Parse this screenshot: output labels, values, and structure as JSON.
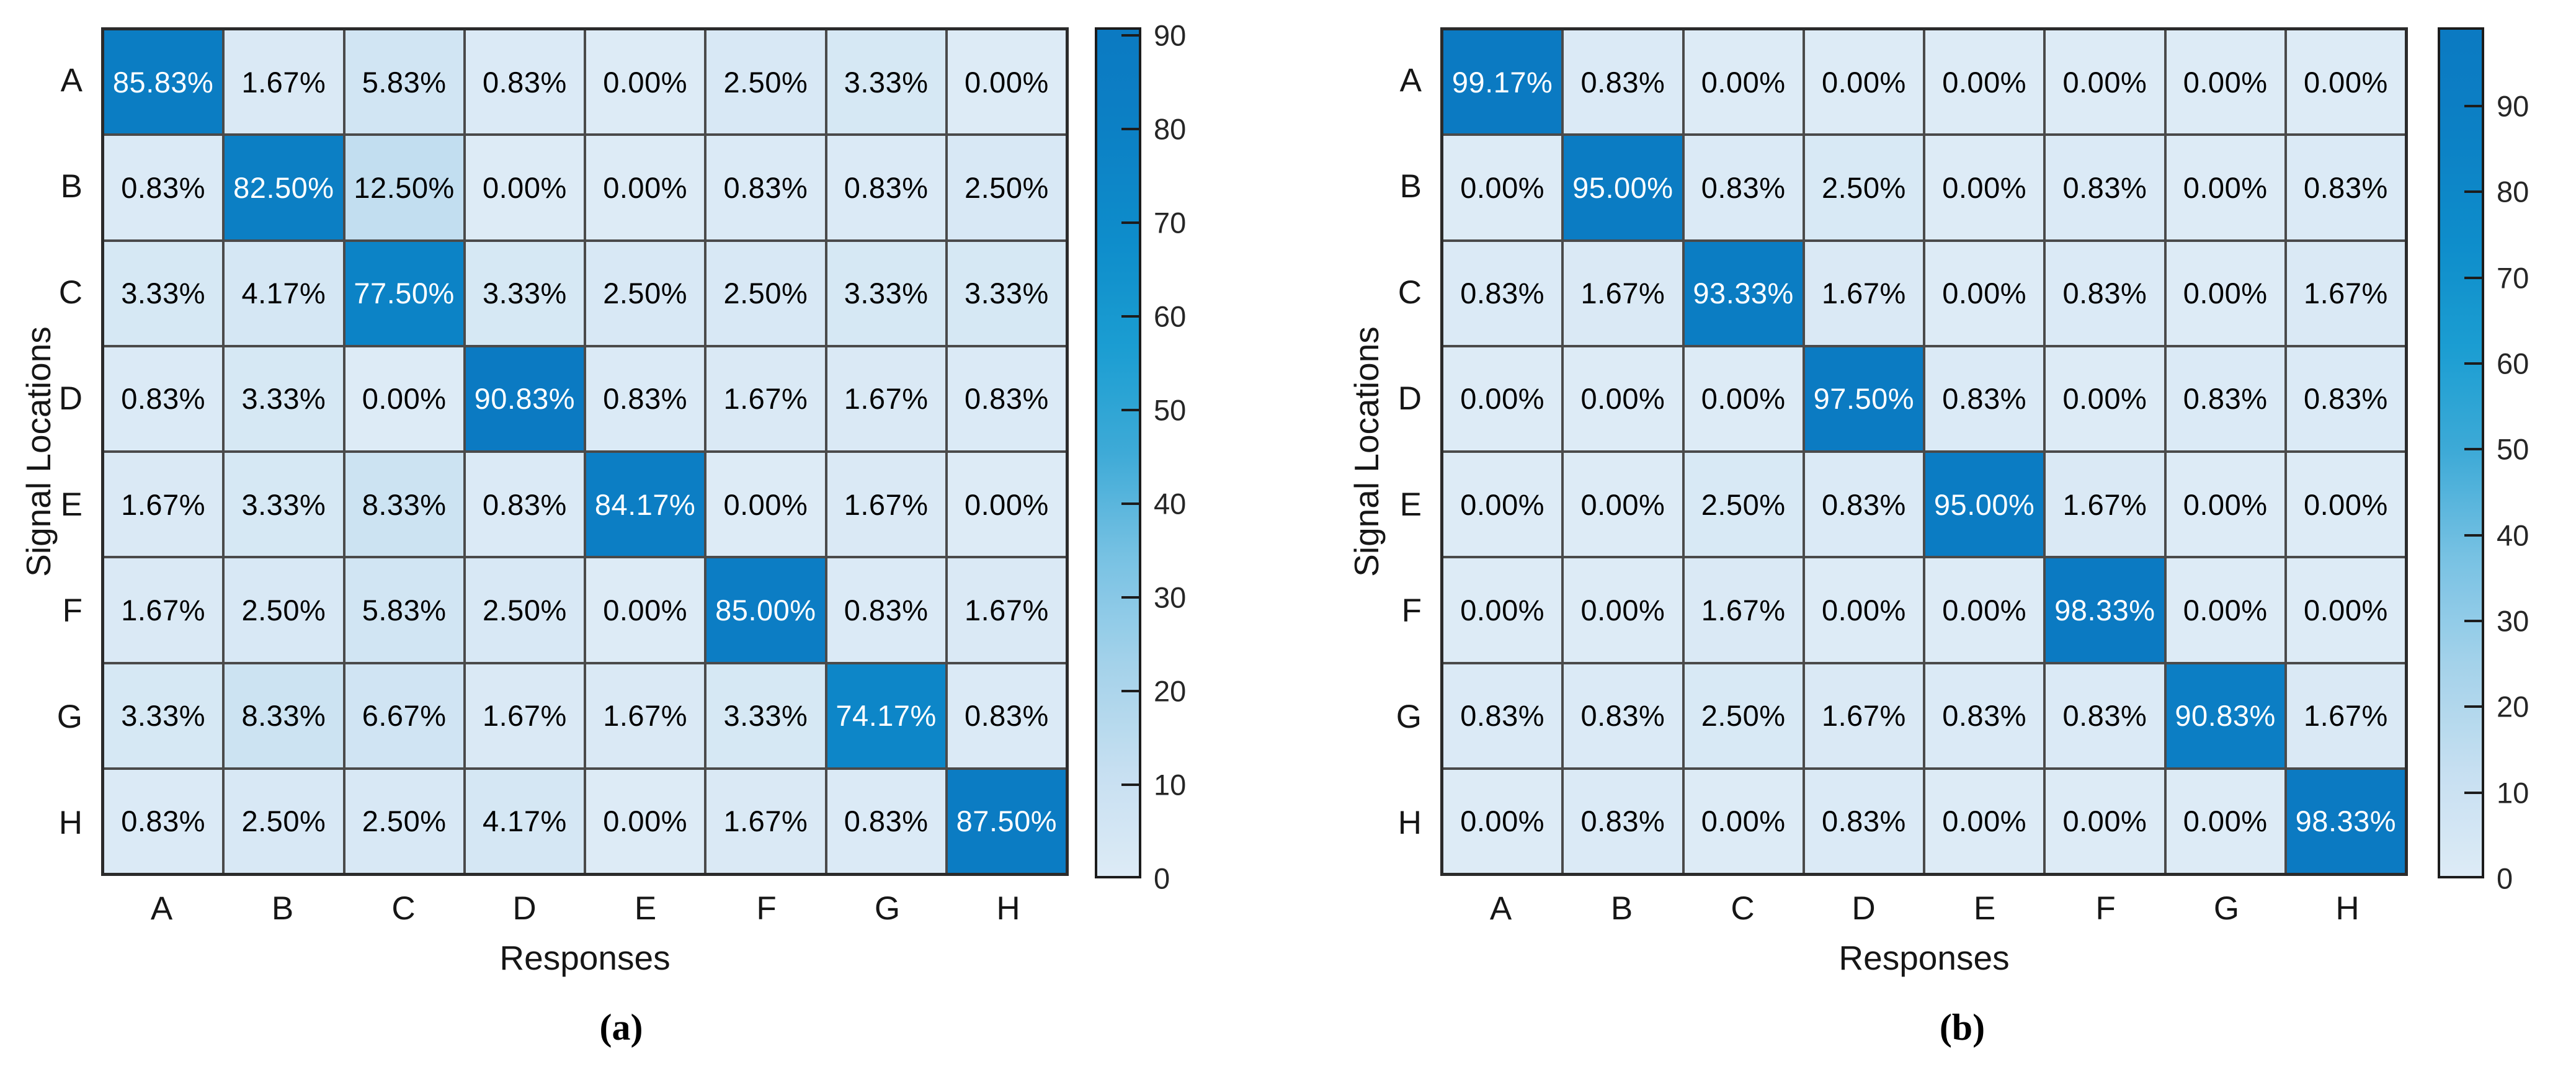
{
  "figure": {
    "xlabel": "Responses",
    "ylabel": "Signal Locations",
    "caption_a": "(a)",
    "caption_b": "(b)"
  },
  "colors": {
    "background": "#ffffff",
    "grid_line": "#4a4a4a",
    "outer_border": "#2b2b2b",
    "cell_text_dark": "#000000",
    "cell_text_light": "#ffffff",
    "axis_text": "#161616",
    "colorbar_border": "#1c1c1c",
    "cmap_low": "#dceaf5",
    "cmap_mid": "#3eaad7",
    "cmap_high": "#0b7ac2",
    "colormap_stops": [
      [
        0.0,
        "#ddebf6"
      ],
      [
        0.12,
        "#c7e0f1"
      ],
      [
        0.25,
        "#a4d2ea"
      ],
      [
        0.38,
        "#76c1e3"
      ],
      [
        0.5,
        "#3eaad7"
      ],
      [
        0.62,
        "#1c9ed2"
      ],
      [
        0.75,
        "#0e8dcb"
      ],
      [
        0.88,
        "#0c80c5"
      ],
      [
        1.0,
        "#0b7ac2"
      ]
    ]
  },
  "chart_data": [
    {
      "type": "heatmap",
      "panel": "a",
      "caption": "(a)",
      "xlabel": "Responses",
      "ylabel": "Signal Locations",
      "row_labels": [
        "A",
        "B",
        "C",
        "D",
        "E",
        "F",
        "G",
        "H"
      ],
      "col_labels": [
        "A",
        "B",
        "C",
        "D",
        "E",
        "F",
        "G",
        "H"
      ],
      "value_format": "percent_2dp",
      "values_percent": [
        [
          85.83,
          1.67,
          5.83,
          0.83,
          0.0,
          2.5,
          3.33,
          0.0
        ],
        [
          0.83,
          82.5,
          12.5,
          0.0,
          0.0,
          0.83,
          0.83,
          2.5
        ],
        [
          3.33,
          4.17,
          77.5,
          3.33,
          2.5,
          2.5,
          3.33,
          3.33
        ],
        [
          0.83,
          3.33,
          0.0,
          90.83,
          0.83,
          1.67,
          1.67,
          0.83
        ],
        [
          1.67,
          3.33,
          8.33,
          0.83,
          84.17,
          0.0,
          1.67,
          0.0
        ],
        [
          1.67,
          2.5,
          5.83,
          2.5,
          0.0,
          85.0,
          0.83,
          1.67
        ],
        [
          3.33,
          8.33,
          6.67,
          1.67,
          1.67,
          3.33,
          74.17,
          0.83
        ],
        [
          0.83,
          2.5,
          2.5,
          4.17,
          0.0,
          1.67,
          0.83,
          87.5
        ]
      ],
      "colorbar": {
        "position": "right",
        "min": 0,
        "max": 90.83,
        "ticks": [
          0,
          10,
          20,
          30,
          40,
          50,
          60,
          70,
          80,
          90
        ]
      },
      "grid": true
    },
    {
      "type": "heatmap",
      "panel": "b",
      "caption": "(b)",
      "xlabel": "Responses",
      "ylabel": "Signal Locations",
      "row_labels": [
        "A",
        "B",
        "C",
        "D",
        "E",
        "F",
        "G",
        "H"
      ],
      "col_labels": [
        "A",
        "B",
        "C",
        "D",
        "E",
        "F",
        "G",
        "H"
      ],
      "value_format": "percent_2dp",
      "values_percent": [
        [
          99.17,
          0.83,
          0.0,
          0.0,
          0.0,
          0.0,
          0.0,
          0.0
        ],
        [
          0.0,
          95.0,
          0.83,
          2.5,
          0.0,
          0.83,
          0.0,
          0.83
        ],
        [
          0.83,
          1.67,
          93.33,
          1.67,
          0.0,
          0.83,
          0.0,
          1.67
        ],
        [
          0.0,
          0.0,
          0.0,
          97.5,
          0.83,
          0.0,
          0.83,
          0.83
        ],
        [
          0.0,
          0.0,
          2.5,
          0.83,
          95.0,
          1.67,
          0.0,
          0.0
        ],
        [
          0.0,
          0.0,
          1.67,
          0.0,
          0.0,
          98.33,
          0.0,
          0.0
        ],
        [
          0.83,
          0.83,
          2.5,
          1.67,
          0.83,
          0.83,
          90.83,
          1.67
        ],
        [
          0.0,
          0.83,
          0.0,
          0.83,
          0.0,
          0.0,
          0.0,
          98.33
        ]
      ],
      "colorbar": {
        "position": "right",
        "min": 0,
        "max": 99.17,
        "ticks": [
          0,
          10,
          20,
          30,
          40,
          50,
          60,
          70,
          80,
          90
        ]
      },
      "grid": true
    }
  ]
}
